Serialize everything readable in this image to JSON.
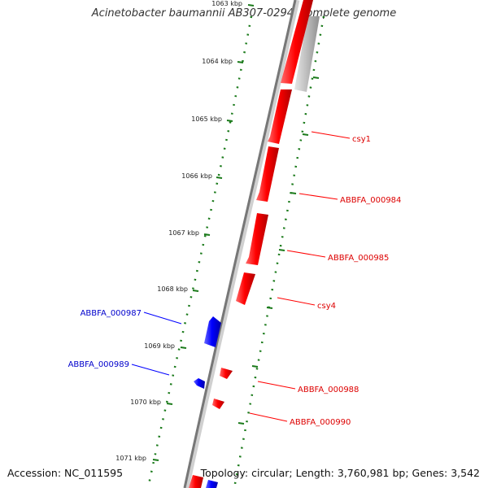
{
  "title": "Acinetobacter baumannii AB307-0294, complete genome",
  "footer": {
    "accession": "Accession: NC_011595",
    "stats": "Topology: circular; Length: 3,760,981 bp; Genes: 3,542"
  },
  "colors": {
    "forward_gene": "#ff0000",
    "reverse_gene": "#0000ff",
    "backbone": "#7a7a7a",
    "gc_track": "#c0c0c0",
    "tick": "#1a7a1a"
  },
  "ticks": [
    {
      "label": "1063 kbp"
    },
    {
      "label": "1064 kbp"
    },
    {
      "label": "1065 kbp"
    },
    {
      "label": "1066 kbp"
    },
    {
      "label": "1067 kbp"
    },
    {
      "label": "1068 kbp"
    },
    {
      "label": "1069 kbp"
    },
    {
      "label": "1070 kbp"
    },
    {
      "label": "1071 kbp"
    }
  ],
  "genes": [
    {
      "name": "csy1",
      "strand": "forward"
    },
    {
      "name": "ABBFA_000984",
      "strand": "forward"
    },
    {
      "name": "ABBFA_000985",
      "strand": "forward"
    },
    {
      "name": "csy4",
      "strand": "forward"
    },
    {
      "name": "ABBFA_000987",
      "strand": "reverse"
    },
    {
      "name": "ABBFA_000989",
      "strand": "reverse"
    },
    {
      "name": "ABBFA_000988",
      "strand": "forward"
    },
    {
      "name": "ABBFA_000990",
      "strand": "forward"
    }
  ]
}
